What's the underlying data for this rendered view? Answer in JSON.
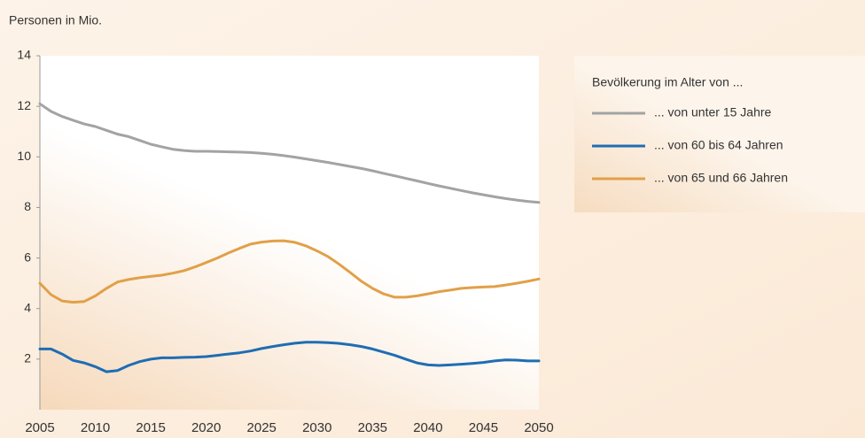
{
  "chart_data": {
    "type": "line",
    "ylabel": "Personen in Mio.",
    "legend_title": "Bevölkerung im Alter von ...",
    "x": [
      2005,
      2006,
      2007,
      2008,
      2009,
      2010,
      2011,
      2012,
      2013,
      2014,
      2015,
      2016,
      2017,
      2018,
      2019,
      2020,
      2021,
      2022,
      2023,
      2024,
      2025,
      2026,
      2027,
      2028,
      2029,
      2030,
      2031,
      2032,
      2033,
      2034,
      2035,
      2036,
      2037,
      2038,
      2039,
      2040,
      2041,
      2042,
      2043,
      2044,
      2045,
      2046,
      2047,
      2048,
      2049,
      2050
    ],
    "series": [
      {
        "name": "... von unter 15 Jahre",
        "color": "#a3a3a3",
        "values": [
          12.1,
          11.8,
          11.6,
          11.45,
          11.3,
          11.2,
          11.05,
          10.9,
          10.8,
          10.65,
          10.5,
          10.4,
          10.3,
          10.25,
          10.22,
          10.22,
          10.21,
          10.2,
          10.19,
          10.17,
          10.14,
          10.1,
          10.05,
          9.99,
          9.92,
          9.85,
          9.78,
          9.7,
          9.62,
          9.54,
          9.45,
          9.35,
          9.25,
          9.15,
          9.05,
          8.95,
          8.85,
          8.76,
          8.67,
          8.58,
          8.5,
          8.42,
          8.35,
          8.29,
          8.24,
          8.2
        ]
      },
      {
        "name": "... von 60 bis 64 Jahren",
        "color": "#1f6db3",
        "values": [
          2.4,
          2.4,
          2.2,
          1.95,
          1.85,
          1.7,
          1.5,
          1.55,
          1.75,
          1.9,
          2.0,
          2.05,
          2.05,
          2.07,
          2.08,
          2.1,
          2.15,
          2.2,
          2.25,
          2.32,
          2.42,
          2.5,
          2.57,
          2.63,
          2.67,
          2.67,
          2.65,
          2.62,
          2.57,
          2.5,
          2.4,
          2.28,
          2.15,
          2.0,
          1.85,
          1.77,
          1.75,
          1.77,
          1.8,
          1.83,
          1.87,
          1.93,
          1.97,
          1.96,
          1.93,
          1.93
        ]
      },
      {
        "name": "... von 65 und 66 Jahren",
        "color": "#e1a048",
        "values": [
          5.0,
          4.55,
          4.3,
          4.25,
          4.28,
          4.5,
          4.8,
          5.05,
          5.15,
          5.22,
          5.27,
          5.32,
          5.4,
          5.5,
          5.65,
          5.82,
          6.0,
          6.2,
          6.38,
          6.55,
          6.63,
          6.67,
          6.68,
          6.62,
          6.48,
          6.28,
          6.05,
          5.75,
          5.42,
          5.08,
          4.8,
          4.58,
          4.45,
          4.45,
          4.5,
          4.58,
          4.67,
          4.73,
          4.8,
          4.83,
          4.85,
          4.87,
          4.93,
          5.0,
          5.08,
          5.17
        ]
      }
    ],
    "xlim": [
      2005,
      2050
    ],
    "xticks": [
      2005,
      2010,
      2015,
      2020,
      2025,
      2030,
      2035,
      2040,
      2045,
      2050
    ],
    "ylim": [
      0,
      14
    ],
    "yticks": [
      2,
      4,
      6,
      8,
      10,
      12,
      14
    ]
  }
}
